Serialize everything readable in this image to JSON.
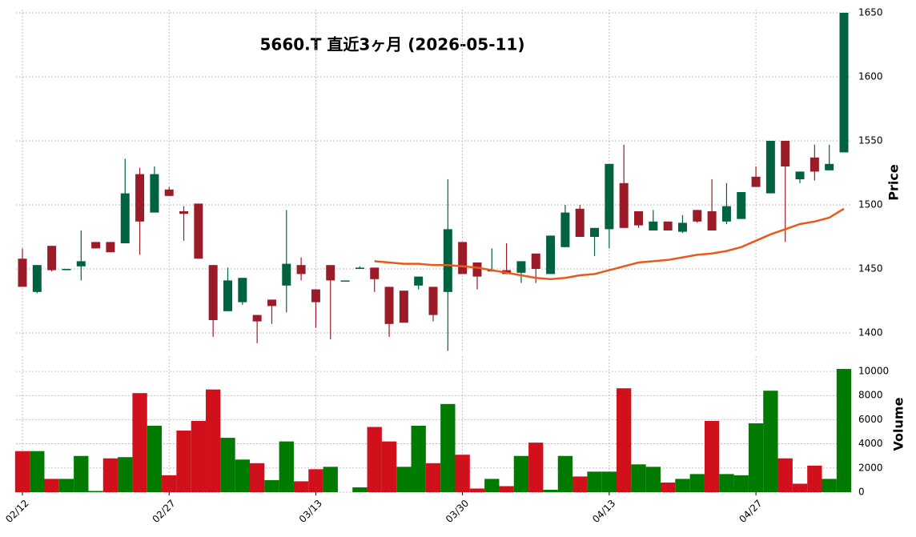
{
  "chart_data": {
    "type": "candlestick",
    "title": "5660.T  直近3ヶ月  (2026-05-11)",
    "y_label": "Price",
    "y2_label": "Volume",
    "categories": [
      "02/12",
      null,
      null,
      null,
      null,
      null,
      null,
      null,
      null,
      null,
      "02/27",
      null,
      null,
      null,
      null,
      null,
      null,
      null,
      null,
      null,
      "03/13",
      null,
      null,
      null,
      null,
      null,
      null,
      null,
      null,
      null,
      "03/30",
      null,
      null,
      null,
      null,
      null,
      null,
      null,
      null,
      null,
      "04/13",
      null,
      null,
      null,
      null,
      null,
      null,
      null,
      null,
      null,
      "04/27",
      null,
      null,
      null,
      null,
      null,
      null
    ],
    "open": [
      1458,
      1432,
      1468,
      1449,
      1452,
      1471,
      1471,
      1470,
      1524,
      1494,
      1512,
      1495,
      1501,
      1453,
      1417,
      1424,
      1414,
      1426,
      1437,
      1453,
      1434,
      1453,
      1441,
      1450,
      1451,
      1436,
      1433,
      1437,
      1436,
      1432,
      1471,
      1455,
      1448,
      1449,
      1447,
      1462,
      1446,
      1467,
      1497,
      1475,
      1481,
      1517,
      1495,
      1480,
      1487,
      1479,
      1496,
      1495,
      1487,
      1489,
      1522,
      1509,
      1550,
      1520,
      1537,
      1527,
      1541
    ],
    "high": [
      1466,
      1453,
      1468,
      1450,
      1480,
      1471,
      1471,
      1536,
      1529,
      1530,
      1514,
      1499,
      1501,
      1453,
      1451,
      1443,
      1414,
      1426,
      1496,
      1459,
      1434,
      1453,
      1441,
      1452,
      1451,
      1436,
      1433,
      1444,
      1436,
      1520,
      1471,
      1455,
      1466,
      1470,
      1456,
      1462,
      1476,
      1500,
      1500,
      1482,
      1532,
      1547,
      1495,
      1496,
      1487,
      1492,
      1496,
      1520,
      1517,
      1510,
      1530,
      1550,
      1550,
      1526,
      1547,
      1547,
      1650
    ],
    "low": [
      1436,
      1431,
      1448,
      1449,
      1441,
      1466,
      1463,
      1470,
      1461,
      1494,
      1507,
      1472,
      1458,
      1397,
      1417,
      1422,
      1392,
      1407,
      1416,
      1441,
      1404,
      1395,
      1441,
      1450,
      1432,
      1397,
      1408,
      1434,
      1409,
      1386,
      1446,
      1434,
      1448,
      1446,
      1439,
      1439,
      1446,
      1467,
      1475,
      1460,
      1466,
      1482,
      1482,
      1480,
      1480,
      1478,
      1486,
      1480,
      1485,
      1489,
      1514,
      1509,
      1471,
      1517,
      1519,
      1527,
      1541
    ],
    "close": [
      1436,
      1453,
      1449,
      1450,
      1456,
      1466,
      1463,
      1509,
      1487,
      1524,
      1507,
      1493,
      1458,
      1410,
      1441,
      1443,
      1409,
      1421,
      1454,
      1446,
      1424,
      1441,
      1441,
      1451,
      1442,
      1407,
      1408,
      1444,
      1414,
      1481,
      1446,
      1444,
      1449,
      1446,
      1456,
      1450,
      1476,
      1494,
      1475,
      1482,
      1532,
      1482,
      1484,
      1487,
      1480,
      1486,
      1487,
      1480,
      1499,
      1510,
      1514,
      1550,
      1530,
      1526,
      1526,
      1532,
      1650
    ],
    "up_color": "#006340",
    "down_color": "#9b1c28",
    "ma": {
      "color": "#e85a1a",
      "values": [
        null,
        null,
        null,
        null,
        null,
        null,
        null,
        null,
        null,
        null,
        null,
        null,
        null,
        null,
        null,
        null,
        null,
        null,
        null,
        null,
        null,
        null,
        null,
        null,
        1456,
        1455,
        1454,
        1454,
        1453,
        1453,
        1452,
        1451,
        1449,
        1447,
        1445,
        1443,
        1442,
        1443,
        1445,
        1446,
        1449,
        1452,
        1455,
        1456,
        1457,
        1459,
        1461,
        1462,
        1464,
        1467,
        1472,
        1477,
        1481,
        1485,
        1487,
        1490,
        1497
      ]
    },
    "volume": {
      "values": [
        3400,
        3400,
        1100,
        1100,
        3000,
        100,
        2800,
        2900,
        8200,
        5500,
        1400,
        5100,
        5900,
        8500,
        4500,
        2700,
        2400,
        1000,
        4200,
        900,
        1900,
        2100,
        0,
        400,
        5400,
        4200,
        2100,
        5500,
        2400,
        7300,
        3100,
        300,
        1100,
        500,
        3000,
        4100,
        200,
        3000,
        1300,
        1700,
        1700,
        8600,
        2300,
        2100,
        800,
        1100,
        1500,
        5900,
        1500,
        1400,
        5700,
        8400,
        2800,
        700,
        2200,
        1100,
        10200
      ],
      "colors": [
        "#d0101a",
        "#007a00",
        "#d0101a",
        "#007a00",
        "#007a00",
        "#007a00",
        "#d0101a",
        "#007a00",
        "#d0101a",
        "#007a00",
        "#d0101a",
        "#d0101a",
        "#d0101a",
        "#d0101a",
        "#007a00",
        "#007a00",
        "#d0101a",
        "#007a00",
        "#007a00",
        "#d0101a",
        "#d0101a",
        "#007a00",
        "#007a00",
        "#007a00",
        "#d0101a",
        "#d0101a",
        "#007a00",
        "#007a00",
        "#d0101a",
        "#007a00",
        "#d0101a",
        "#d0101a",
        "#007a00",
        "#d0101a",
        "#007a00",
        "#d0101a",
        "#007a00",
        "#007a00",
        "#d0101a",
        "#007a00",
        "#007a00",
        "#d0101a",
        "#007a00",
        "#007a00",
        "#d0101a",
        "#007a00",
        "#007a00",
        "#d0101a",
        "#007a00",
        "#007a00",
        "#007a00",
        "#007a00",
        "#d0101a",
        "#d0101a",
        "#d0101a",
        "#007a00",
        "#007a00"
      ]
    },
    "ylim": [
      1385,
      1650
    ],
    "yticks": [
      1400,
      1450,
      1500,
      1550,
      1600,
      1650
    ],
    "y2lim": [
      0,
      10600
    ],
    "y2ticks": [
      0,
      2000,
      4000,
      6000,
      8000,
      10000
    ],
    "grid": true
  }
}
